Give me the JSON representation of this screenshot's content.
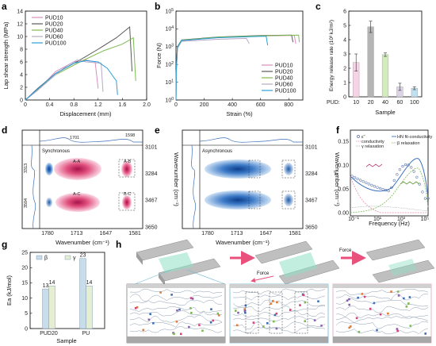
{
  "panels": {
    "a": "a",
    "b": "b",
    "c": "c",
    "d": "d",
    "e": "e",
    "f": "f",
    "g": "g",
    "h": "h"
  },
  "colors": {
    "PUD10": "#d98cc4",
    "PUD20": "#5a5a5a",
    "PUD40": "#7dbb52",
    "PUD60": "#b8a8c8",
    "PUD100": "#2a9fd6",
    "synchronous_map": "#d9407a",
    "asynchronous_map": "#2f6db5",
    "beta_bar": "#c9dcea",
    "gamma_bar": "#e5eed2",
    "arrow": "#e9507c"
  },
  "chart_data": [
    {
      "id": "a",
      "type": "line",
      "xlabel": "Displacement (mm)",
      "ylabel": "Lap shear strength (MPa)",
      "xlim": [
        0,
        2
      ],
      "ylim": [
        0,
        14
      ],
      "xticks": [
        "0",
        "0.4",
        "0.8",
        "1.2",
        "1.6",
        "2.0"
      ],
      "yticks": [
        "0",
        "2",
        "4",
        "6",
        "8",
        "10",
        "12",
        "14"
      ],
      "legend_position": "top-left",
      "series": [
        {
          "name": "PUD10",
          "points": [
            [
              0,
              0
            ],
            [
              0.2,
              1.5
            ],
            [
              0.5,
              4.5
            ],
            [
              0.8,
              6.0
            ],
            [
              1.0,
              6.3
            ],
            [
              1.15,
              6.0
            ],
            [
              1.2,
              1.8
            ]
          ]
        },
        {
          "name": "PUD20",
          "points": [
            [
              0,
              0
            ],
            [
              0.2,
              1.8
            ],
            [
              0.5,
              4.2
            ],
            [
              0.9,
              6.3
            ],
            [
              1.2,
              8.0
            ],
            [
              1.5,
              9.8
            ],
            [
              1.72,
              11.5
            ],
            [
              1.76,
              4.5
            ]
          ]
        },
        {
          "name": "PUD40",
          "points": [
            [
              0,
              0
            ],
            [
              0.2,
              1.6
            ],
            [
              0.5,
              4.0
            ],
            [
              0.9,
              6.0
            ],
            [
              1.3,
              7.8
            ],
            [
              1.6,
              8.8
            ],
            [
              1.78,
              9.8
            ],
            [
              1.82,
              3.0
            ]
          ]
        },
        {
          "name": "PUD60",
          "points": [
            [
              0,
              0
            ],
            [
              0.2,
              1.5
            ],
            [
              0.5,
              4.0
            ],
            [
              0.7,
              5.5
            ],
            [
              0.85,
              6.3
            ],
            [
              1.0,
              6.0
            ],
            [
              1.25,
              5.8
            ],
            [
              1.28,
              1.3
            ]
          ]
        },
        {
          "name": "PUD100",
          "points": [
            [
              0,
              0
            ],
            [
              0.2,
              1.7
            ],
            [
              0.5,
              4.2
            ],
            [
              0.8,
              5.8
            ],
            [
              1.0,
              6.2
            ],
            [
              1.2,
              6.0
            ],
            [
              1.35,
              5.0
            ],
            [
              1.5,
              3.0
            ],
            [
              1.52,
              0.8
            ]
          ]
        }
      ]
    },
    {
      "id": "b",
      "type": "line",
      "xlabel": "Strain (%)",
      "ylabel": "Force (N)",
      "xlim": [
        0,
        900
      ],
      "ylim": [
        1,
        100000
      ],
      "yscale": "log",
      "xticks": [
        "0",
        "200",
        "400",
        "600",
        "800"
      ],
      "yticks": [
        "10^0",
        "10^1",
        "10^2",
        "10^3",
        "10^4",
        "10^5"
      ],
      "legend_position": "bottom-right",
      "series": [
        {
          "name": "PUD10",
          "points": [
            [
              0,
              1
            ],
            [
              2,
              40
            ],
            [
              10,
              900
            ],
            [
              40,
              2200
            ],
            [
              300,
              3300
            ],
            [
              600,
              4000
            ],
            [
              840,
              4300
            ],
            [
              850,
              1500
            ]
          ]
        },
        {
          "name": "PUD20",
          "points": [
            [
              0,
              1
            ],
            [
              2,
              50
            ],
            [
              10,
              1000
            ],
            [
              40,
              2400
            ],
            [
              300,
              3500
            ],
            [
              600,
              4200
            ],
            [
              820,
              4500
            ],
            [
              830,
              1800
            ]
          ]
        },
        {
          "name": "PUD40",
          "points": [
            [
              0,
              1
            ],
            [
              2,
              40
            ],
            [
              10,
              900
            ],
            [
              40,
              2300
            ],
            [
              300,
              3400
            ],
            [
              600,
              4100
            ],
            [
              870,
              4500
            ],
            [
              875,
              1800
            ]
          ]
        },
        {
          "name": "PUD60",
          "points": [
            [
              0,
              1
            ],
            [
              2,
              35
            ],
            [
              10,
              800
            ],
            [
              40,
              2000
            ],
            [
              300,
              2600
            ],
            [
              500,
              2900
            ],
            [
              520,
              1500
            ]
          ]
        },
        {
          "name": "PUD100",
          "points": [
            [
              0,
              1
            ],
            [
              2,
              45
            ],
            [
              10,
              900
            ],
            [
              40,
              2200
            ],
            [
              300,
              3200
            ],
            [
              550,
              3700
            ],
            [
              640,
              3900
            ],
            [
              650,
              1200
            ]
          ]
        }
      ]
    },
    {
      "id": "c",
      "type": "bar",
      "xlabel": "Sample",
      "ylabel": "Energy release rate (10³ kJ/m²)",
      "category_prefix": "PUD:",
      "categories": [
        "10",
        "20",
        "40",
        "60",
        "100"
      ],
      "values": [
        2.4,
        4.9,
        2.95,
        0.7,
        0.6
      ],
      "errors": [
        0.6,
        0.4,
        0.12,
        0.25,
        0.1
      ],
      "ylim": [
        0,
        6
      ],
      "yticks": [
        "0",
        "1",
        "2",
        "3",
        "4",
        "5",
        "6"
      ],
      "colors": [
        "#f7d3e6",
        "#b5b5b5",
        "#d3ebbd",
        "#ddd2e8",
        "#bde1f3"
      ]
    },
    {
      "id": "g",
      "type": "bar",
      "xlabel": "Sample",
      "ylabel": "Ea (kJ/mol)",
      "categories": [
        "PUD20",
        "PU"
      ],
      "series": [
        {
          "name": "β",
          "values": [
            13,
            23
          ]
        },
        {
          "name": "γ",
          "values": [
            14,
            14
          ]
        }
      ],
      "ylim": [
        0,
        25
      ],
      "yticks": [
        "0",
        "5",
        "10",
        "15",
        "20",
        "25"
      ],
      "legend_position": "top-left"
    }
  ],
  "panel_d": {
    "title": "Synchronous",
    "xlabel": "Wavenumber (cm⁻¹)",
    "ylabel": "Wavenumber (cm⁻¹)",
    "xticks": [
      "1780",
      "1713",
      "1647",
      "1581"
    ],
    "yticks": [
      "3101",
      "3284",
      "3467",
      "3650"
    ],
    "top_peaks": [
      "1701",
      "1598"
    ],
    "left_peaks": [
      "3313",
      "3504"
    ],
    "cross_peaks": [
      "A-A",
      "A-B",
      "A-C",
      "B-C"
    ]
  },
  "panel_e": {
    "title": "Asynchronous",
    "xlabel": "Wavenumber (cm⁻¹)",
    "ylabel": "Wavenumber (cm⁻¹)",
    "xticks": [
      "1780",
      "1713",
      "1647",
      "1581"
    ],
    "yticks": [
      "3101",
      "3284",
      "3467",
      "3650"
    ]
  },
  "panel_f": {
    "xlabel": "Frequency (Hz)",
    "ylabel": "ε''",
    "yticks": [
      "0.00",
      "0.05",
      "0.10",
      "0.15"
    ],
    "xticks": [
      "10⁻¹",
      "10¹",
      "10³",
      "10⁵"
    ],
    "legend": [
      "ε''",
      "conductivity",
      "γ relaxation",
      "HN fit-conductivity",
      "β relaxation"
    ]
  },
  "panel_h": {
    "force_label_1": "Force",
    "force_label_2": "Force"
  }
}
